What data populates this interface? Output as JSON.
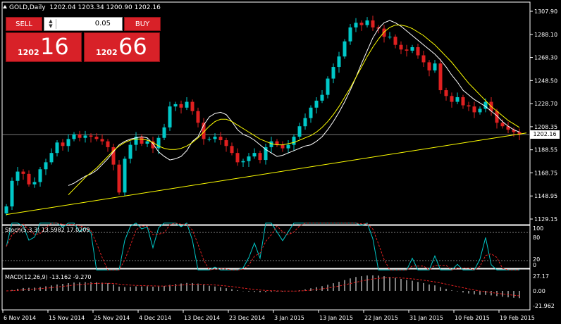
{
  "header": {
    "symbol_text": "GOLD,Daily",
    "ohlc_text": "1202.04 1203.34 1200.90 1202.16"
  },
  "trade_panel": {
    "sell_label": "SELL",
    "buy_label": "BUY",
    "lot_value": "0.05",
    "bid_prefix": "1202",
    "bid_big": "16",
    "ask_prefix": "1202",
    "ask_big": "66"
  },
  "current_price_label": "1202.16",
  "price_axis": [
    "1307.90",
    "1288.10",
    "1268.30",
    "1248.50",
    "1228.70",
    "1208.35",
    "1188.55",
    "1168.75",
    "1148.95",
    "1129.15"
  ],
  "stoch": {
    "label": "Stoch(5,3,3) 13.5982 17.0209",
    "ticks": [
      "100",
      "80",
      "20",
      "0"
    ]
  },
  "macd": {
    "label": "MACD(12,26,9) -13.162 -9.270",
    "ticks": [
      "27.17",
      "0.00",
      "-21.962"
    ]
  },
  "time_axis": [
    "6 Nov 2014",
    "15 Nov 2014",
    "25 Nov 2014",
    "4 Dec 2014",
    "13 Dec 2014",
    "23 Dec 2014",
    "3 Jan 2015",
    "13 Jan 2015",
    "22 Jan 2015",
    "31 Jan 2015",
    "10 Feb 2015",
    "19 Feb 2015"
  ],
  "colors": {
    "up": "#00c8c8",
    "down": "#e02020",
    "ma": "#ffff00",
    "trendline": "#ffff00",
    "signal": "#e02020",
    "stoch_main": "#00c8c8",
    "macd_hist": "#ffffff",
    "axis": "#ffffff"
  },
  "chart_data": {
    "type": "candlestick",
    "symbol": "GOLD",
    "timeframe": "Daily",
    "ylim": [
      1129.15,
      1307.9
    ],
    "bars_close": [
      1140,
      1162,
      1170,
      1168,
      1159,
      1161,
      1172,
      1178,
      1186,
      1195,
      1192,
      1198,
      1202,
      1199,
      1201,
      1200,
      1198,
      1196,
      1191,
      1176,
      1152,
      1181,
      1193,
      1200,
      1194,
      1196,
      1190,
      1199,
      1208,
      1226,
      1228,
      1225,
      1230,
      1222,
      1212,
      1198,
      1198,
      1200,
      1197,
      1192,
      1186,
      1178,
      1179,
      1183,
      1186,
      1180,
      1191,
      1196,
      1193,
      1190,
      1193,
      1200,
      1209,
      1216,
      1225,
      1231,
      1236,
      1250,
      1260,
      1269,
      1282,
      1294,
      1298,
      1296,
      1300,
      1294,
      1293,
      1286,
      1286,
      1279,
      1275,
      1274,
      1277,
      1270,
      1264,
      1257,
      1263,
      1240,
      1235,
      1230,
      1234,
      1227,
      1226,
      1221,
      1224,
      1230,
      1222,
      1212,
      1209,
      1206,
      1204,
      1202
    ],
    "sma_fast": [
      1158,
      1160,
      1163,
      1166,
      1168,
      1171,
      1176,
      1181,
      1187,
      1193,
      1196,
      1198,
      1199,
      1200,
      1199,
      1194,
      1187,
      1183,
      1180,
      1181,
      1183,
      1188,
      1196,
      1200,
      1210,
      1217,
      1220,
      1221,
      1219,
      1213,
      1206,
      1202,
      1200,
      1197,
      1193,
      1189,
      1186,
      1183,
      1184,
      1186,
      1188,
      1190,
      1192,
      1193,
      1196,
      1200,
      1206,
      1213,
      1221,
      1230,
      1240,
      1251,
      1263,
      1274,
      1285,
      1293,
      1298,
      1300,
      1298,
      1295,
      1291,
      1287,
      1283,
      1279,
      1275,
      1271,
      1266,
      1260,
      1253,
      1247,
      1240,
      1236,
      1232,
      1229,
      1226,
      1222,
      1218,
      1213,
      1209,
      1206,
      1204
    ],
    "sma_slow": [
      1150,
      1155,
      1160,
      1165,
      1169,
      1173,
      1178,
      1183,
      1188,
      1192,
      1195,
      1197,
      1198,
      1198,
      1197,
      1195,
      1192,
      1190,
      1189,
      1189,
      1190,
      1192,
      1195,
      1199,
      1204,
      1209,
      1213,
      1215,
      1215,
      1213,
      1210,
      1207,
      1204,
      1201,
      1198,
      1196,
      1194,
      1193,
      1193,
      1194,
      1195,
      1197,
      1199,
      1201,
      1204,
      1208,
      1213,
      1219,
      1226,
      1234,
      1242,
      1251,
      1260,
      1269,
      1277,
      1284,
      1290,
      1294,
      1296,
      1296,
      1295,
      1293,
      1290,
      1287,
      1283,
      1279,
      1274,
      1269,
      1264,
      1258,
      1252,
      1246,
      1241,
      1236,
      1231,
      1226,
      1222,
      1218,
      1214,
      1211,
      1208
    ],
    "trendline": [
      [
        0,
        1133
      ],
      [
        91,
        1202
      ]
    ]
  }
}
